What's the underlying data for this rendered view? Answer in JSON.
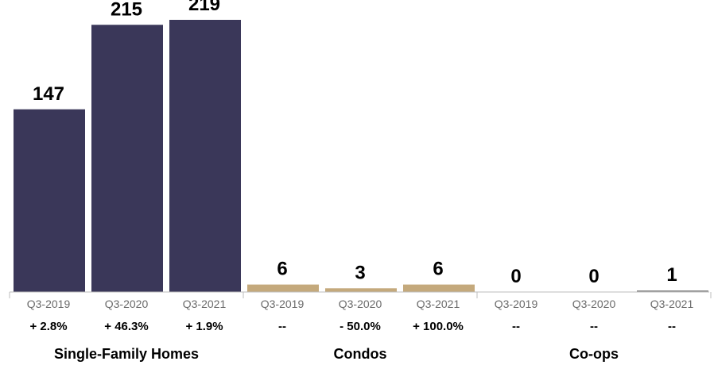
{
  "chart_data": {
    "type": "bar",
    "title": "",
    "xlabel": "",
    "ylabel": "",
    "ylim": [
      0,
      240
    ],
    "grid": false,
    "legend": "none",
    "groups": [
      {
        "name": "Single-Family Homes",
        "color": "#3a3759",
        "categories": [
          "Q3-2019",
          "Q3-2020",
          "Q3-2021"
        ],
        "values": [
          147,
          215,
          219
        ],
        "changes": [
          "+ 2.8%",
          "+ 46.3%",
          "+ 1.9%"
        ]
      },
      {
        "name": "Condos",
        "color": "#c4a97c",
        "categories": [
          "Q3-2019",
          "Q3-2020",
          "Q3-2021"
        ],
        "values": [
          6,
          3,
          6
        ],
        "changes": [
          "--",
          "- 50.0%",
          "+ 100.0%"
        ]
      },
      {
        "name": "Co-ops",
        "color": "#8c8c8c",
        "categories": [
          "Q3-2019",
          "Q3-2020",
          "Q3-2021"
        ],
        "values": [
          0,
          0,
          1
        ],
        "changes": [
          "--",
          "--",
          "--"
        ]
      }
    ]
  }
}
